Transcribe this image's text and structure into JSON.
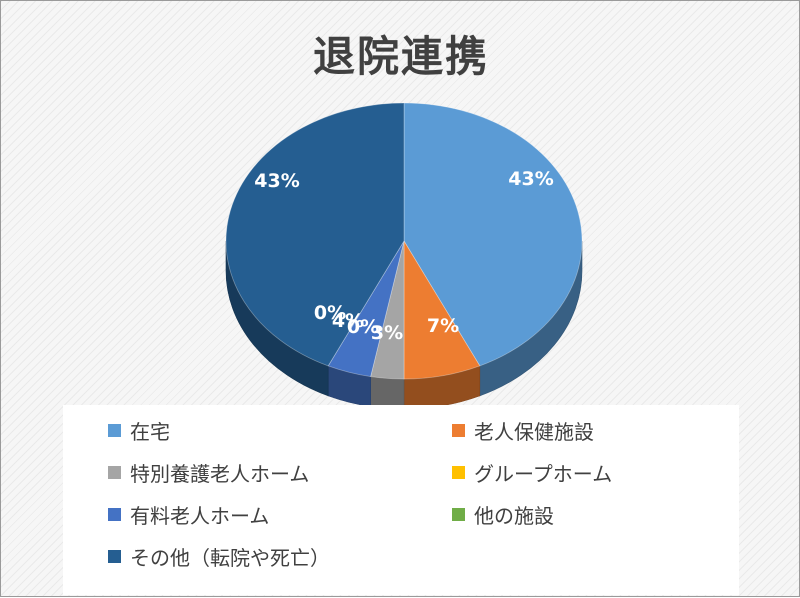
{
  "title": "退院連携",
  "chart_data": {
    "type": "pie",
    "title": "退院連携",
    "slices": [
      {
        "label": "在宅",
        "value": 43,
        "data_label": "43%",
        "color": "#5B9BD5"
      },
      {
        "label": "老人保健施設",
        "value": 7,
        "data_label": "7%",
        "color": "#ED7D31"
      },
      {
        "label": "特別養護老人ホーム",
        "value": 3,
        "data_label": "3%",
        "color": "#A5A5A5"
      },
      {
        "label": "グループホーム",
        "value": 0,
        "data_label": "0%",
        "color": "#FFC000"
      },
      {
        "label": "有料老人ホーム",
        "value": 4,
        "data_label": "4%",
        "color": "#4472C4"
      },
      {
        "label": "他の施設",
        "value": 0,
        "data_label": "0%",
        "color": "#70AD47"
      },
      {
        "label": "その他（転院や死亡）",
        "value": 43,
        "data_label": "43%",
        "color": "#255E91"
      }
    ],
    "legend": "bottom",
    "style": "3d-pie"
  }
}
